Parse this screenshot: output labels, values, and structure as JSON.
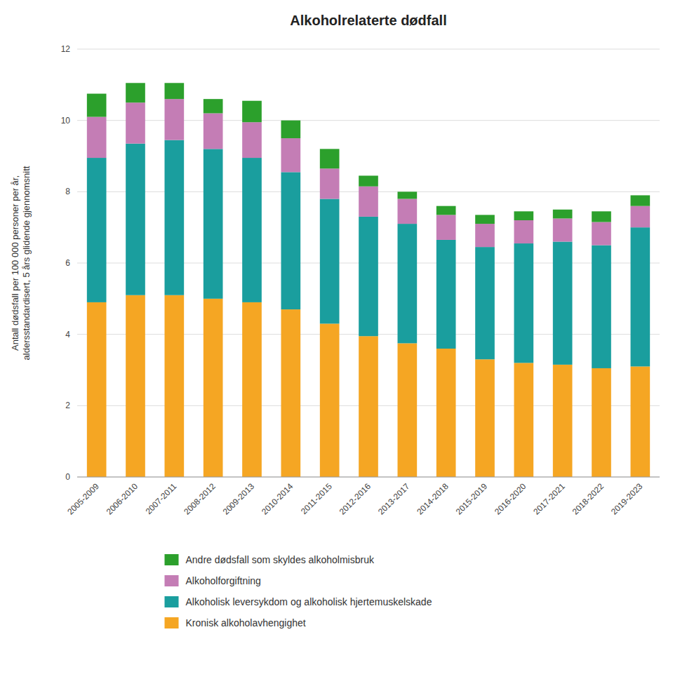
{
  "chart_data": {
    "type": "bar",
    "stacked": true,
    "title": "Alkoholrelaterte dødfall",
    "ylabel": "Antall dødsfall per 100 000 personer per år,\naldersstandardisert, 5 års glidende gjennomsnitt",
    "categories": [
      "2005-2009",
      "2006-2010",
      "2007-2011",
      "2008-2012",
      "2009-2013",
      "2010-2014",
      "2011-2015",
      "2012-2016",
      "2013-2017",
      "2014-2018",
      "2015-2019",
      "2016-2020",
      "2017-2021",
      "2018-2022",
      "2019-2023"
    ],
    "series": [
      {
        "name": "Kronisk alkoholavhengighet",
        "color": "#F5A623",
        "values": [
          4.9,
          5.1,
          5.1,
          5.0,
          4.9,
          4.7,
          4.3,
          3.95,
          3.75,
          3.6,
          3.3,
          3.2,
          3.15,
          3.05,
          3.1
        ]
      },
      {
        "name": "Alkoholisk leversykdom og alkoholisk hjertemuskelskade",
        "color": "#1A9E9E",
        "values": [
          4.05,
          4.25,
          4.35,
          4.2,
          4.05,
          3.85,
          3.5,
          3.35,
          3.35,
          3.05,
          3.15,
          3.35,
          3.45,
          3.45,
          3.9
        ]
      },
      {
        "name": "Alkoholforgiftning",
        "color": "#C47DB5",
        "values": [
          1.15,
          1.15,
          1.15,
          1.0,
          1.0,
          0.95,
          0.85,
          0.85,
          0.7,
          0.7,
          0.65,
          0.65,
          0.65,
          0.65,
          0.6
        ]
      },
      {
        "name": "Andre dødsfall som skyldes alkoholmisbruk",
        "color": "#2CA02C",
        "values": [
          0.65,
          0.55,
          0.45,
          0.4,
          0.6,
          0.5,
          0.55,
          0.3,
          0.2,
          0.25,
          0.25,
          0.25,
          0.25,
          0.3,
          0.3
        ]
      }
    ],
    "ylim": [
      0,
      12
    ],
    "yticks": [
      0,
      2,
      4,
      6,
      8,
      10,
      12
    ],
    "grid": true,
    "legend": "bottom"
  }
}
